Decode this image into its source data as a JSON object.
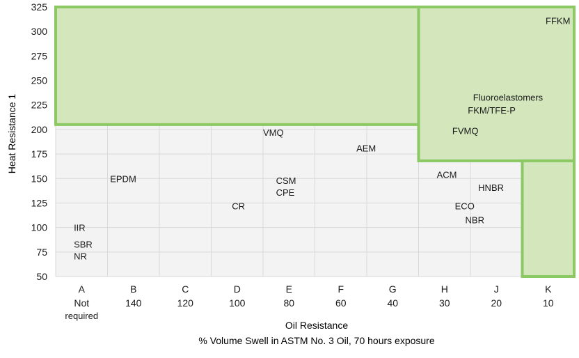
{
  "chart_data": {
    "type": "scatter",
    "ylabel": "Heat Resistance 1",
    "xlabel": "Oil Resistance",
    "xlabel_sub": "% Volume Swell in ASTM No. 3 Oil, 70 hours exposure",
    "ylim": [
      50,
      325
    ],
    "yticks": [
      50,
      75,
      100,
      125,
      150,
      175,
      200,
      225,
      250,
      275,
      300,
      325
    ],
    "grid": true,
    "categories": [
      {
        "letter": "A",
        "value": "Not",
        "value2": "required"
      },
      {
        "letter": "B",
        "value": "140"
      },
      {
        "letter": "C",
        "value": "120"
      },
      {
        "letter": "D",
        "value": "100"
      },
      {
        "letter": "E",
        "value": "80"
      },
      {
        "letter": "F",
        "value": "60"
      },
      {
        "letter": "G",
        "value": "40"
      },
      {
        "letter": "H",
        "value": "30"
      },
      {
        "letter": "J",
        "value": "20"
      },
      {
        "letter": "K",
        "value": "10"
      }
    ],
    "points": [
      {
        "label": "IIR",
        "x": 0.35,
        "y": 100
      },
      {
        "label": "SBR",
        "x": 0.35,
        "y": 83
      },
      {
        "label": "NR",
        "x": 0.35,
        "y": 71
      },
      {
        "label": "EPDM",
        "x": 1.05,
        "y": 150
      },
      {
        "label": "CR",
        "x": 3.4,
        "y": 122
      },
      {
        "label": "VMQ",
        "x": 4.0,
        "y": 197
      },
      {
        "label": "CSM",
        "x": 4.25,
        "y": 148
      },
      {
        "label": "CPE",
        "x": 4.25,
        "y": 136
      },
      {
        "label": "AEM",
        "x": 5.8,
        "y": 181
      },
      {
        "label": "FVMQ",
        "x": 7.65,
        "y": 199
      },
      {
        "label": "ACM",
        "x": 7.35,
        "y": 154
      },
      {
        "label": "HNBR",
        "x": 8.15,
        "y": 141
      },
      {
        "label": "ECO",
        "x": 7.7,
        "y": 122
      },
      {
        "label": "NBR",
        "x": 7.9,
        "y": 108
      },
      {
        "label": "FFKM",
        "x": 9.45,
        "y": 311
      },
      {
        "label": "Fluoroelastomers",
        "x": 8.05,
        "y": 233
      },
      {
        "label": "FKM/TFE-P",
        "x": 7.95,
        "y": 220
      }
    ],
    "regions": [
      {
        "x": [
          0,
          7.0
        ],
        "y": [
          205,
          325
        ]
      },
      {
        "x": [
          7.0,
          10
        ],
        "y": [
          168,
          325
        ]
      },
      {
        "x": [
          9.0,
          10
        ],
        "y": [
          50,
          168
        ]
      }
    ],
    "colors": {
      "region_fill": "#d3e6bc",
      "region_stroke": "#8cc863",
      "plot_bg": "#f3f3f3",
      "grid": "#d9d9d9",
      "text": "#1a1a1a"
    }
  }
}
